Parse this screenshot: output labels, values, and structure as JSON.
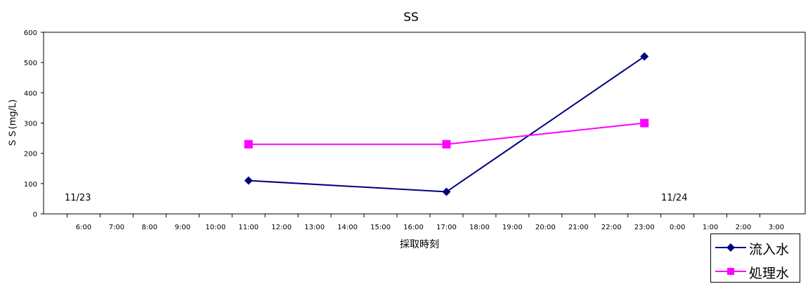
{
  "chart_data": {
    "type": "line",
    "title": "SS",
    "xlabel": "採取時刻",
    "ylabel": "ＳＳ(mg/L)",
    "ylim": [
      0,
      600
    ],
    "yticks": [
      "0",
      "100",
      "200",
      "300",
      "400",
      "500",
      "600"
    ],
    "categories": [
      "6:00",
      "7:00",
      "8:00",
      "9:00",
      "10:00",
      "11:00",
      "12:00",
      "13:00",
      "14:00",
      "15:00",
      "16:00",
      "17:00",
      "18:00",
      "19:00",
      "20:00",
      "21:00",
      "22:00",
      "23:00",
      "0:00",
      "1:00",
      "2:00",
      "3:00"
    ],
    "series": [
      {
        "name": "流入水",
        "color": "#000080",
        "marker": "diamond",
        "values": [
          null,
          null,
          null,
          null,
          null,
          110,
          null,
          null,
          null,
          null,
          null,
          73,
          null,
          null,
          null,
          null,
          null,
          520,
          null,
          null,
          null,
          null
        ]
      },
      {
        "name": "処理水",
        "color": "#ff00ff",
        "marker": "square",
        "values": [
          null,
          null,
          null,
          null,
          null,
          230,
          null,
          null,
          null,
          null,
          null,
          230,
          null,
          null,
          null,
          null,
          null,
          300,
          null,
          null,
          null,
          null
        ]
      }
    ],
    "annotations": [
      {
        "text": "11/23",
        "at": "6:00"
      },
      {
        "text": "11/24",
        "at": "0:00"
      }
    ],
    "grid": false,
    "legend_position": "bottom-right"
  }
}
